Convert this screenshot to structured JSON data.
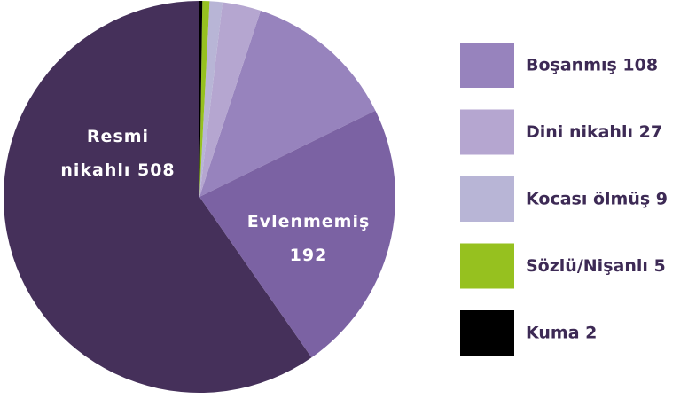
{
  "chart_data": {
    "type": "pie",
    "categories": [
      "Boşanmış 108",
      "Dini nikahlı 27",
      "Kocası ölmüş 9",
      "Sözlü/Nişanlı 5",
      "Kuma 2",
      "Resmi nikahlı 508",
      "Evlenmemiş 192"
    ],
    "values": [
      108,
      27,
      9,
      5,
      2,
      508,
      192
    ],
    "colors": [
      "#9783bd",
      "#b5a6d0",
      "#b8b5d6",
      "#96c11f",
      "#000000",
      "#45305a",
      "#7b62a3"
    ]
  }
}
